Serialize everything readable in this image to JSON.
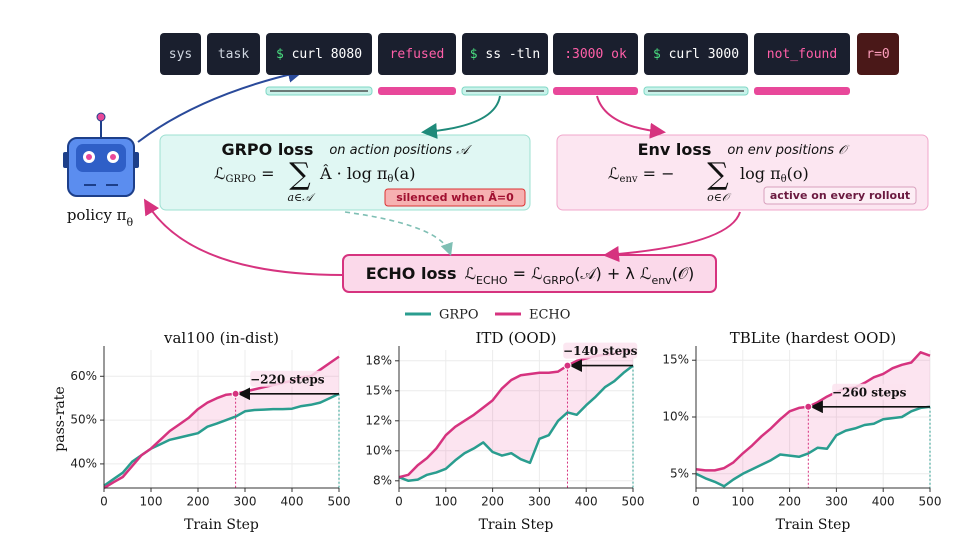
{
  "tokens": [
    {
      "text": "sys"
    },
    {
      "text": "task"
    },
    {
      "prompt": "$",
      "text": "curl 8080"
    },
    {
      "text": "refused"
    },
    {
      "prompt": "$",
      "text": "ss -tln"
    },
    {
      "text": ":3000 ok"
    },
    {
      "prompt": "$",
      "text": "curl 3000"
    },
    {
      "text": "not_found"
    },
    {
      "text": "r=0"
    }
  ],
  "policy": [
    {
      "text": "policy π"
    },
    {
      "sub": "θ"
    }
  ],
  "grpo_box": {
    "title": "GRPO loss",
    "subtitle": "on action positions 𝒜",
    "pre": [
      {
        "text": "ℒ"
      },
      {
        "sub": "GRPO"
      },
      {
        "text": " ="
      }
    ],
    "sum": "∑",
    "under": "a∈𝒜",
    "post": [
      {
        "text": "Â · log π"
      },
      {
        "sub": "θ"
      },
      {
        "text": "(a)"
      }
    ],
    "badge": "silenced when Â=0"
  },
  "env_box": {
    "title": "Env loss",
    "subtitle": "on env positions 𝒪",
    "pre": [
      {
        "text": "ℒ"
      },
      {
        "sub": "env"
      },
      {
        "text": " = −"
      }
    ],
    "sum": "∑",
    "under": "o∈𝒪",
    "post": [
      {
        "text": "log π"
      },
      {
        "sub": "θ"
      },
      {
        "text": "(o)"
      }
    ],
    "badge": "active on every rollout"
  },
  "echo_box": {
    "title": "ECHO loss",
    "formula": [
      {
        "text": "ℒ"
      },
      {
        "sub": "ECHO"
      },
      {
        "text": " = ℒ"
      },
      {
        "sub": "GRPO"
      },
      {
        "text": "(𝒜) + λ ℒ"
      },
      {
        "sub": "env"
      },
      {
        "text": "(𝒪)"
      }
    ]
  },
  "chart_data": [
    {
      "type": "line",
      "title": "val100  (in-dist)",
      "x_label": "Train Step",
      "y_label": "pass-rate",
      "grid": true,
      "x": [
        0,
        20,
        40,
        60,
        80,
        100,
        120,
        140,
        160,
        180,
        200,
        220,
        240,
        260,
        280,
        300,
        320,
        340,
        360,
        380,
        400,
        420,
        440,
        460,
        480,
        500
      ],
      "xlim": [
        0,
        500
      ],
      "xticks": [
        0,
        100,
        200,
        300,
        400,
        500
      ],
      "ylim": [
        34.5,
        66
      ],
      "yticks": [
        {
          "value": 40,
          "label": "40%"
        },
        {
          "value": 50,
          "label": "50%"
        },
        {
          "value": 60,
          "label": "60%"
        }
      ],
      "series": [
        {
          "name": "GRPO",
          "color": "#2a9d8f",
          "values": [
            35,
            36.5,
            38,
            40.5,
            42,
            43.5,
            44.5,
            45.5,
            46,
            46.5,
            47,
            48.5,
            49.2,
            50,
            50.8,
            52,
            52.3,
            52.4,
            52.5,
            52.5,
            52.6,
            53.2,
            53.5,
            54,
            55,
            56
          ]
        },
        {
          "name": "ECHO",
          "color": "#d6337f",
          "values": [
            34.5,
            35.8,
            37,
            39.5,
            42,
            43.5,
            45.5,
            47.5,
            49,
            50.5,
            52.5,
            54,
            55,
            55.8,
            56,
            56.5,
            57,
            57.5,
            58,
            58.5,
            59,
            59.8,
            60,
            61.5,
            63,
            64.5
          ]
        }
      ],
      "annotation": {
        "text": "−220 steps",
        "x_from": 500,
        "x_to": 280,
        "y": 56
      }
    },
    {
      "type": "line",
      "title": "ITD  (OOD)",
      "x_label": "Train Step",
      "grid": true,
      "x": [
        0,
        20,
        40,
        60,
        80,
        100,
        120,
        140,
        160,
        180,
        200,
        220,
        240,
        260,
        280,
        300,
        320,
        340,
        360,
        380,
        400,
        420,
        440,
        460,
        480,
        500
      ],
      "xlim": [
        0,
        500
      ],
      "xticks": [
        0,
        100,
        200,
        300,
        400,
        500
      ],
      "ylim": [
        6.9,
        18.4
      ],
      "yticks": [
        {
          "value": 7.5,
          "label": "8%"
        },
        {
          "value": 10,
          "label": "10%"
        },
        {
          "value": 12.5,
          "label": "12%"
        },
        {
          "value": 15,
          "label": "15%"
        },
        {
          "value": 17.5,
          "label": "18%"
        }
      ],
      "series": [
        {
          "name": "GRPO",
          "color": "#2a9d8f",
          "values": [
            7.8,
            7.5,
            7.6,
            8.0,
            8.2,
            8.5,
            9.2,
            9.8,
            10.2,
            10.7,
            9.9,
            9.6,
            9.8,
            9.3,
            9.0,
            11.0,
            11.3,
            12.5,
            13.2,
            13.0,
            13.8,
            14.5,
            15.3,
            15.8,
            16.5,
            17.1
          ]
        },
        {
          "name": "ECHO",
          "color": "#d6337f",
          "values": [
            7.8,
            8.0,
            8.8,
            9.4,
            10.2,
            11.3,
            12.0,
            12.5,
            13.0,
            13.6,
            14.2,
            15.2,
            15.9,
            16.3,
            16.4,
            16.5,
            16.5,
            16.6,
            17.1,
            17.5,
            17.7,
            17.9,
            18.0,
            18.1,
            18.3,
            18.4
          ]
        }
      ],
      "annotation": {
        "text": "−140 steps",
        "x_from": 500,
        "x_to": 360,
        "y": 17.1
      }
    },
    {
      "type": "line",
      "title": "TBLite  (hardest OOD)",
      "x_label": "Train Step",
      "grid": true,
      "x": [
        0,
        20,
        40,
        60,
        80,
        100,
        120,
        140,
        160,
        180,
        200,
        220,
        240,
        260,
        280,
        300,
        320,
        340,
        360,
        380,
        400,
        420,
        440,
        460,
        480,
        500
      ],
      "xlim": [
        0,
        500
      ],
      "xticks": [
        0,
        100,
        200,
        300,
        400,
        500
      ],
      "ylim": [
        3.75,
        15.9
      ],
      "yticks": [
        {
          "value": 5,
          "label": "5%"
        },
        {
          "value": 10,
          "label": "10%"
        },
        {
          "value": 15,
          "label": "15%"
        }
      ],
      "series": [
        {
          "name": "GRPO",
          "color": "#2a9d8f",
          "values": [
            5.0,
            4.6,
            4.3,
            3.9,
            4.5,
            5.0,
            5.4,
            5.8,
            6.2,
            6.7,
            6.6,
            6.5,
            6.8,
            7.3,
            7.2,
            8.4,
            8.8,
            9.0,
            9.3,
            9.4,
            9.8,
            9.9,
            10.0,
            10.5,
            10.8,
            10.9
          ]
        },
        {
          "name": "ECHO",
          "color": "#d6337f",
          "values": [
            5.4,
            5.3,
            5.3,
            5.5,
            6.0,
            6.8,
            7.5,
            8.3,
            9.0,
            9.8,
            10.5,
            10.8,
            10.9,
            11.3,
            11.8,
            12.2,
            12.5,
            12.6,
            13.0,
            13.5,
            13.8,
            14.3,
            14.6,
            14.8,
            15.7,
            15.4
          ]
        }
      ],
      "annotation": {
        "text": "−260 steps",
        "x_from": 500,
        "x_to": 240,
        "y": 10.9
      }
    }
  ]
}
